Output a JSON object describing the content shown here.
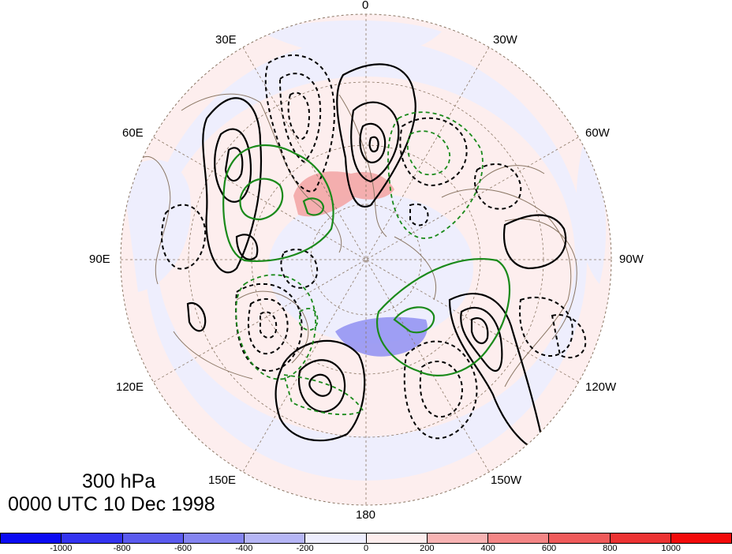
{
  "title": {
    "level": "300 hPa",
    "datetime": "0000 UTC 10 Dec 1998"
  },
  "longitude_labels": {
    "top": "0",
    "bottom": "180",
    "left": "90E",
    "right": "90W",
    "e30": "30E",
    "w30": "30W",
    "e60": "60E",
    "w60": "60W",
    "e120": "120E",
    "w120": "120W",
    "e150": "150E",
    "w150": "150W"
  },
  "colorbar": {
    "ticks": [
      "-1000",
      "-800",
      "-600",
      "-400",
      "-200",
      "0",
      "200",
      "400",
      "600",
      "800",
      "1000"
    ],
    "colors": [
      "#0a0af2",
      "#3333f0",
      "#5a5aee",
      "#8484f0",
      "#b5b5f5",
      "#ededfd",
      "#fdeded",
      "#f7b3b3",
      "#f38585",
      "#ef5a5a",
      "#ec3232",
      "#f20a0a"
    ]
  },
  "map_colors": {
    "background_blue": "#eeeefd",
    "background_pink": "#fdeeee",
    "positive_anomaly": "#f3a0a0",
    "negative_anomaly": "#9090f0",
    "coastline": "#8b7765",
    "grid": "#8b7765",
    "contour": "#000000",
    "green_contour": "#1a8a1a"
  }
}
